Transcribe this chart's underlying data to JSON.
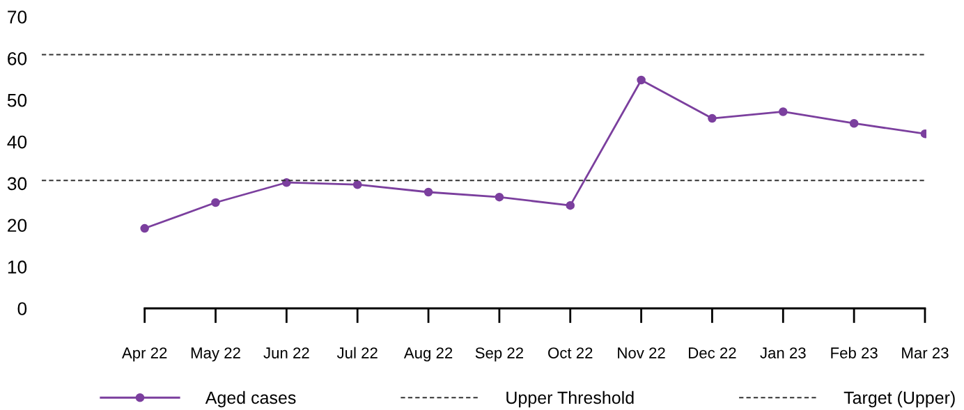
{
  "chart_data": {
    "type": "line",
    "categories": [
      "Apr 22",
      "May 22",
      "Jun 22",
      "Jul 22",
      "Aug 22",
      "Sep 22",
      "Oct 22",
      "Nov 22",
      "Dec 22",
      "Jan 23",
      "Feb 23",
      "Mar 23"
    ],
    "series": [
      {
        "name": "Aged cases",
        "color": "#7b3f9e",
        "values": [
          19.2,
          25.4,
          30.2,
          29.7,
          27.9,
          26.7,
          24.7,
          54.8,
          45.6,
          47.2,
          44.4,
          41.9
        ]
      }
    ],
    "ref_lines": [
      {
        "axis": "y",
        "value": 60.9,
        "label": "Upper Threshold",
        "color": "#333333",
        "line_style": "dashed"
      },
      {
        "axis": "y",
        "value": 30.7,
        "label": "Target (Upper)",
        "color": "#333333",
        "line_style": "dashed"
      }
    ],
    "ylim": [
      0,
      70
    ],
    "yticks": [
      0,
      10,
      20,
      30,
      40,
      50,
      60,
      70
    ],
    "marker": "circle",
    "line_style": "solid",
    "grid": false,
    "legend": "bottom"
  }
}
